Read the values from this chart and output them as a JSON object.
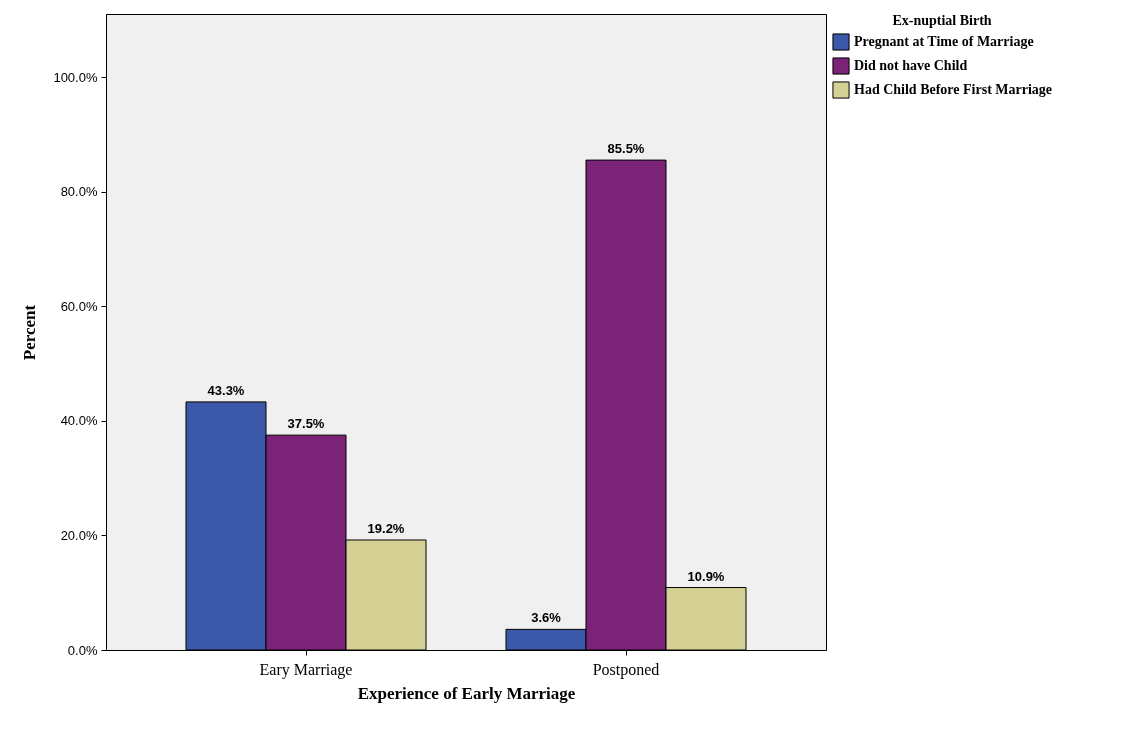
{
  "chart_data": {
    "type": "bar",
    "xlabel": "Experience of Early Marriage",
    "ylabel": "Percent",
    "legend_title": "Ex-nuptial Birth",
    "categories": [
      "Eary Marriage",
      "Postponed"
    ],
    "series": [
      {
        "name": "Pregnant at Time of Marriage",
        "color": "#3c58a8",
        "values": [
          43.3,
          3.6
        ],
        "value_labels": [
          "43.3%",
          "3.6%"
        ]
      },
      {
        "name": "Did not have Child",
        "color": "#7b2377",
        "values": [
          37.5,
          85.5
        ],
        "value_labels": [
          "37.5%",
          "85.5%"
        ]
      },
      {
        "name": "Had Child Before First Marriage",
        "color": "#d5d195",
        "values": [
          19.2,
          10.9
        ],
        "value_labels": [
          "19.2%",
          "10.9%"
        ]
      }
    ],
    "ylim": [
      0,
      111
    ],
    "yticks": [
      {
        "value": 0,
        "label": "0.0%"
      },
      {
        "value": 20,
        "label": "20.0%"
      },
      {
        "value": 40,
        "label": "40.0%"
      },
      {
        "value": 60,
        "label": "60.0%"
      },
      {
        "value": 80,
        "label": "80.0%"
      },
      {
        "value": 100,
        "label": "100.0%"
      }
    ],
    "grid": false,
    "legend": "top right"
  }
}
